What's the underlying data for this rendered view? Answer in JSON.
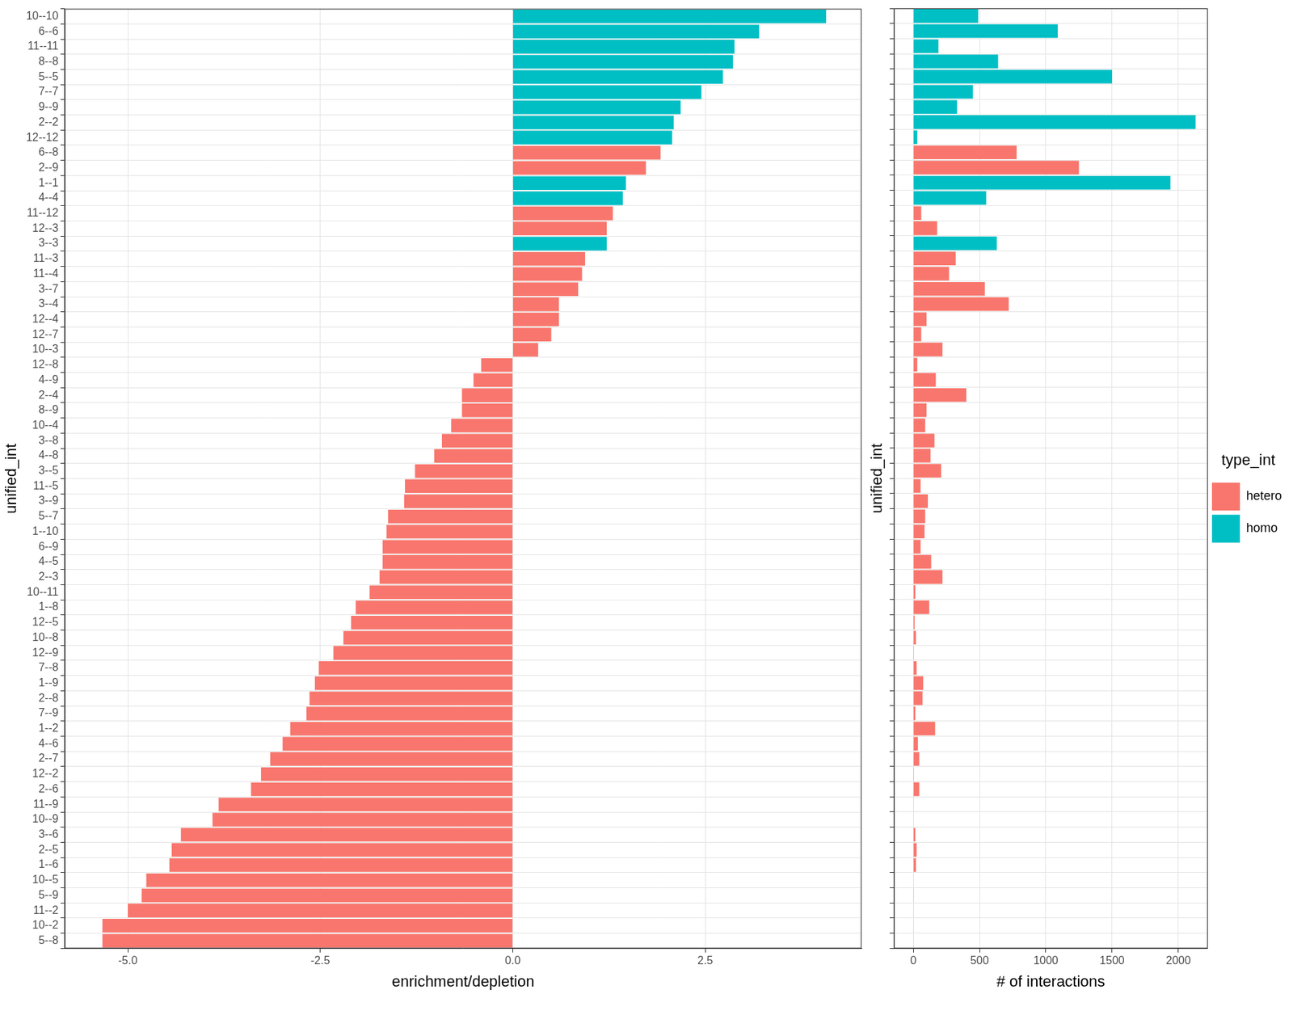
{
  "chart_data": [
    {
      "type": "bar",
      "orientation": "horizontal",
      "grid": true,
      "x_label": "enrichment/depletion",
      "y_label": "unified_int",
      "xlim": [
        -5.82,
        4.53
      ],
      "xticks": [
        {
          "value": -5,
          "label": "-5.0"
        },
        {
          "value": -2.5,
          "label": "-2.5"
        },
        {
          "value": 0,
          "label": "0.0"
        },
        {
          "value": 2.5,
          "label": "2.5"
        }
      ],
      "categories": [
        "10--10",
        "6--6",
        "11--11",
        "8--8",
        "5--5",
        "7--7",
        "9--9",
        "2--2",
        "12--12",
        "6--8",
        "2--9",
        "1--1",
        "4--4",
        "11--12",
        "12--3",
        "3--3",
        "11--3",
        "11--4",
        "3--7",
        "3--4",
        "12--4",
        "12--7",
        "10--3",
        "12--8",
        "4--9",
        "2--4",
        "8--9",
        "10--4",
        "3--8",
        "4--8",
        "3--5",
        "11--5",
        "3--9",
        "5--7",
        "1--10",
        "6--9",
        "4--5",
        "2--3",
        "10--11",
        "1--8",
        "12--5",
        "10--8",
        "12--9",
        "7--8",
        "1--9",
        "2--8",
        "7--9",
        "1--2",
        "4--6",
        "2--7",
        "12--2",
        "2--6",
        "11--9",
        "10--9",
        "3--6",
        "2--5",
        "1--6",
        "10--5",
        "5--9",
        "11--2",
        "10--2",
        "5--8"
      ],
      "series": [
        {
          "name": "hetero",
          "color": "#F8766D",
          "values": [
            null,
            null,
            null,
            null,
            null,
            null,
            null,
            null,
            null,
            1.92,
            1.73,
            null,
            null,
            1.3,
            1.22,
            null,
            0.94,
            0.9,
            0.85,
            0.6,
            0.6,
            0.5,
            0.33,
            -0.41,
            -0.51,
            -0.66,
            -0.66,
            -0.8,
            -0.92,
            -1.02,
            -1.27,
            -1.4,
            -1.41,
            -1.62,
            -1.64,
            -1.69,
            -1.69,
            -1.73,
            -1.86,
            -2.04,
            -2.1,
            -2.2,
            -2.33,
            -2.52,
            -2.57,
            -2.64,
            -2.68,
            -2.89,
            -2.99,
            -3.15,
            -3.27,
            -3.4,
            -3.82,
            -3.9,
            -4.31,
            -4.43,
            -4.46,
            -4.76,
            -4.82,
            -5.0,
            -5.33,
            -5.33
          ]
        },
        {
          "name": "homo",
          "color": "#00BFC4",
          "values": [
            4.07,
            3.2,
            2.88,
            2.86,
            2.73,
            2.45,
            2.18,
            2.09,
            2.07,
            null,
            null,
            1.47,
            1.43,
            null,
            null,
            1.22,
            null,
            null,
            null,
            null,
            null,
            null,
            null,
            null,
            null,
            null,
            null,
            null,
            null,
            null,
            null,
            null,
            null,
            null,
            null,
            null,
            null,
            null,
            null,
            null,
            null,
            null,
            null,
            null,
            null,
            null,
            null,
            null,
            null,
            null,
            null,
            null,
            null,
            null,
            null,
            null,
            null,
            null,
            null,
            null,
            null,
            null
          ]
        }
      ]
    },
    {
      "type": "bar",
      "orientation": "horizontal",
      "grid": true,
      "tick_labels": "x",
      "x_label": "# of interactions",
      "y_label": "unified_int",
      "legend": "right",
      "legend_title": "type_int",
      "xlim": [
        -146,
        2222
      ],
      "xticks": [
        0,
        500,
        1000,
        1500,
        2000
      ],
      "categories": [
        "10--10",
        "6--6",
        "11--11",
        "8--8",
        "5--5",
        "7--7",
        "9--9",
        "2--2",
        "12--12",
        "6--8",
        "2--9",
        "1--1",
        "4--4",
        "11--12",
        "12--3",
        "3--3",
        "11--3",
        "11--4",
        "3--7",
        "3--4",
        "12--4",
        "12--7",
        "10--3",
        "12--8",
        "4--9",
        "2--4",
        "8--9",
        "10--4",
        "3--8",
        "4--8",
        "3--5",
        "11--5",
        "3--9",
        "5--7",
        "1--10",
        "6--9",
        "4--5",
        "2--3",
        "10--11",
        "1--8",
        "12--5",
        "10--8",
        "12--9",
        "7--8",
        "1--9",
        "2--8",
        "7--9",
        "1--2",
        "4--6",
        "2--7",
        "12--2",
        "2--6",
        "11--9",
        "10--9",
        "3--6",
        "2--5",
        "1--6",
        "10--5",
        "5--9",
        "11--2",
        "10--2",
        "5--8"
      ],
      "series": [
        {
          "name": "hetero",
          "color": "#F8766D",
          "values": [
            null,
            null,
            null,
            null,
            null,
            null,
            null,
            null,
            null,
            780,
            1250,
            null,
            null,
            60,
            180,
            null,
            320,
            270,
            540,
            720,
            100,
            60,
            220,
            30,
            170,
            400,
            100,
            90,
            160,
            130,
            210,
            55,
            110,
            90,
            85,
            55,
            135,
            220,
            15,
            120,
            10,
            20,
            5,
            25,
            75,
            70,
            15,
            165,
            35,
            45,
            5,
            45,
            2,
            3,
            15,
            25,
            20,
            3,
            4,
            2,
            2,
            2
          ]
        },
        {
          "name": "homo",
          "color": "#00BFC4",
          "values": [
            490,
            1090,
            190,
            640,
            1500,
            450,
            330,
            2130,
            30,
            null,
            null,
            1940,
            550,
            null,
            null,
            630,
            null,
            null,
            null,
            null,
            null,
            null,
            null,
            null,
            null,
            null,
            null,
            null,
            null,
            null,
            null,
            null,
            null,
            null,
            null,
            null,
            null,
            null,
            null,
            null,
            null,
            null,
            null,
            null,
            null,
            null,
            null,
            null,
            null,
            null,
            null,
            null,
            null,
            null,
            null,
            null,
            null,
            null,
            null,
            null,
            null,
            null
          ]
        }
      ]
    }
  ]
}
